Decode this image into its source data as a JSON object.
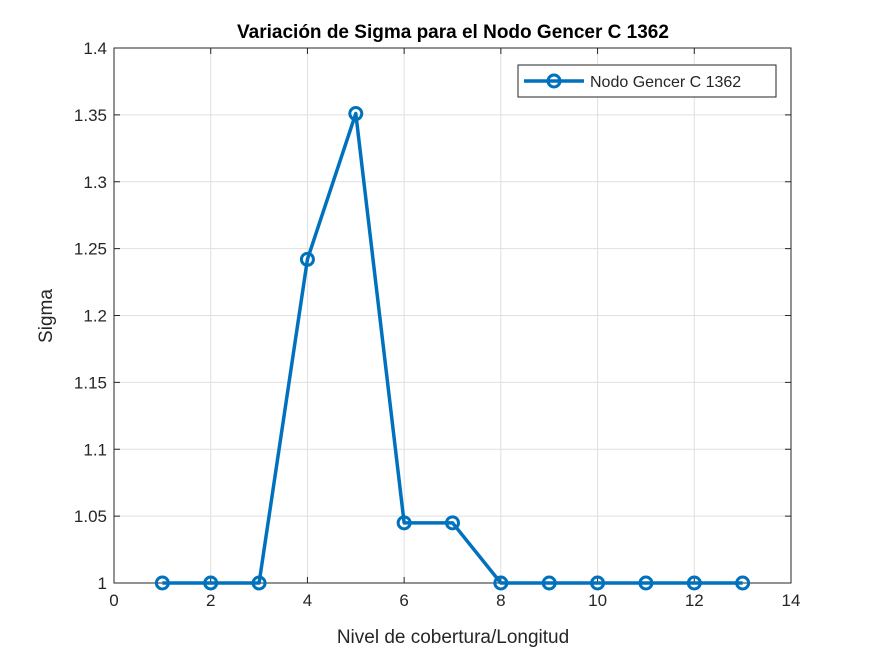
{
  "chart_data": {
    "type": "line",
    "title": "Variación de Sigma para el Nodo Gencer C 1362",
    "xlabel": "Nivel de cobertura/Longitud",
    "ylabel": "Sigma",
    "xlim": [
      0,
      14
    ],
    "ylim": [
      1,
      1.4
    ],
    "xticks": [
      0,
      2,
      4,
      6,
      8,
      10,
      12,
      14
    ],
    "yticks": [
      1,
      1.05,
      1.1,
      1.15,
      1.2,
      1.25,
      1.3,
      1.35,
      1.4
    ],
    "xtick_labels": [
      "0",
      "2",
      "4",
      "6",
      "8",
      "10",
      "12",
      "14"
    ],
    "ytick_labels": [
      "1",
      "1.05",
      "1.1",
      "1.15",
      "1.2",
      "1.25",
      "1.3",
      "1.35",
      "1.4"
    ],
    "grid": true,
    "legend_position": "top-right",
    "series": [
      {
        "name": "Nodo Gencer C 1362",
        "color": "#0072BD",
        "marker": "circle",
        "x": [
          1,
          2,
          3,
          4,
          5,
          6,
          7,
          8,
          9,
          10,
          11,
          12,
          13
        ],
        "y": [
          1,
          1,
          1,
          1.242,
          1.351,
          1.045,
          1.045,
          1,
          1,
          1,
          1,
          1,
          1
        ]
      }
    ]
  }
}
